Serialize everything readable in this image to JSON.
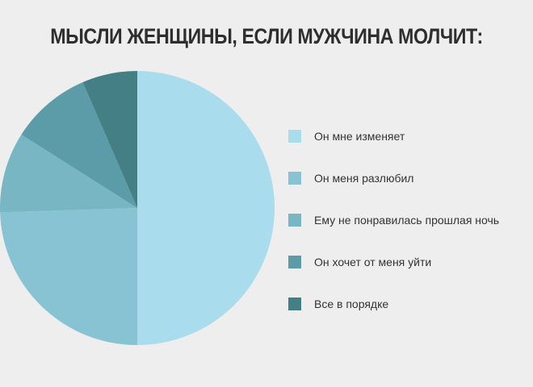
{
  "chart_data": {
    "type": "pie",
    "title": "МЫСЛИ ЖЕНЩИНЫ, ЕСЛИ МУЖЧИНА МОЛЧИТ:",
    "series": [
      {
        "label": "Он мне изменяет",
        "value": 50.0,
        "color": "#a9dcec"
      },
      {
        "label": "Он меня разлюбил",
        "value": 24.5,
        "color": "#87c3d3"
      },
      {
        "label": "Ему не понравилась прошлая ночь",
        "value": 9.5,
        "color": "#78b6c4"
      },
      {
        "label": "Он хочет от меня уйти",
        "value": 9.5,
        "color": "#5c9ca8"
      },
      {
        "label": "Все в порядке",
        "value": 6.5,
        "color": "#447f86"
      }
    ],
    "legend": "right"
  }
}
